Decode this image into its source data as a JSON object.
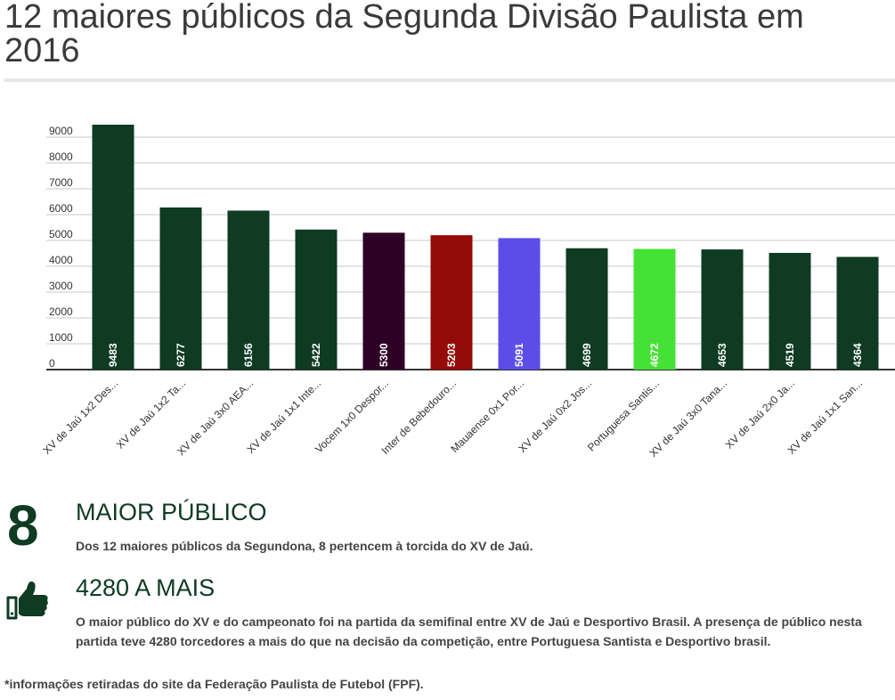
{
  "title": "12 maiores públicos da Segunda Divisão Paulista em 2016",
  "chart_data": {
    "type": "bar",
    "title": "12 maiores públicos da Segunda Divisão Paulista em 2016",
    "categories": [
      "XV de Jaú 1x2 Des...",
      "XV de Jaú 1x2 Ta...",
      "XV de Jaú 3x0 AEA...",
      "XV de Jaú 1x1 Inte...",
      "Vocem 1x0 Despor...",
      "Inter de Bebedouro...",
      "Mauaense 0x1 Por...",
      "XV de Jaú 0x2 Jos...",
      "Portuguesa Santis...",
      "XV de Jaú 3x0 Tana...",
      "XV de Jaú 2x0 Ja...",
      "XV de Jaú 1x1 San..."
    ],
    "values": [
      9483,
      6277,
      6156,
      5422,
      5300,
      5203,
      5091,
      4699,
      4672,
      4653,
      4519,
      4364
    ],
    "colors": [
      "#0e3b22",
      "#0e3b22",
      "#0e3b22",
      "#0e3b22",
      "#2e0026",
      "#940b08",
      "#5b4ee8",
      "#0e3b22",
      "#45e235",
      "#0e3b22",
      "#0e3b22",
      "#0e3b22"
    ],
    "yticks": [
      0,
      1000,
      2000,
      3000,
      4000,
      5000,
      6000,
      7000,
      8000,
      9000
    ],
    "ylim": [
      0,
      9483
    ],
    "xlabel": "",
    "ylabel": "",
    "grid": true
  },
  "stat1": {
    "number": "8",
    "heading": "MAIOR PÚBLICO",
    "description": "Dos 12 maiores públicos da Segundona, 8 pertencem à torcida do XV de Jaú."
  },
  "stat2": {
    "icon": "thumbs-up-icon",
    "heading": "4280 A MAIS",
    "description": "O maior público do XV e do campeonato foi na partida da semifinal entre XV de Jaú e Desportivo Brasil. A presença de público nesta partida teve 4280 torcedores a mais do que na decisão da competição, entre Portuguesa Santista e Desportivo brasil."
  },
  "footnote": "*informações retiradas do site da Federação Paulista de Futebol (FPF).",
  "colors": {
    "accent": "#0e3b22"
  }
}
